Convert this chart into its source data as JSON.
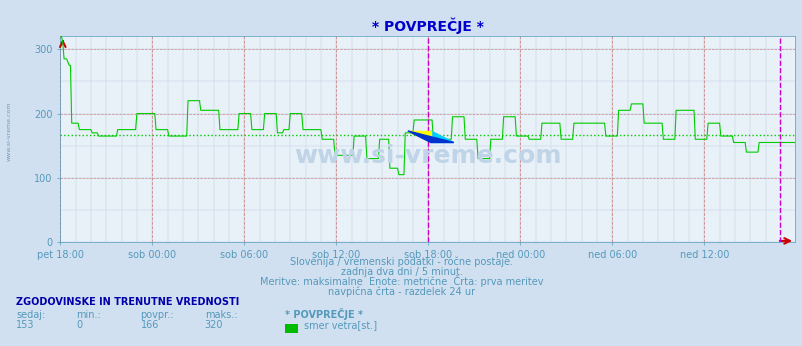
{
  "title": "* POVPREČJE *",
  "bg_color": "#d0e0f0",
  "plot_bg_color": "#e8f0f8",
  "line_color": "#00cc00",
  "avg_line_color": "#00cc00",
  "avg_value": 166,
  "ymin": 0,
  "ymax": 320,
  "xlabel_color": "#5599bb",
  "grid_color_major": "#cc8888",
  "grid_color_minor": "#bbccdd",
  "title_color": "#0000cc",
  "text_color": "#5599bb",
  "xtick_labels": [
    "pet 18:00",
    "sob 00:00",
    "sob 06:00",
    "sob 12:00",
    "sob 18:00",
    "ned 00:00",
    "ned 06:00",
    "ned 12:00"
  ],
  "xtick_positions": [
    0,
    72,
    144,
    216,
    288,
    360,
    432,
    504
  ],
  "subtitle_lines": [
    "Slovenija / vremenski podatki - ročne postaje.",
    "zadnja dva dni / 5 minut.",
    "Meritve: maksimalne  Enote: metrične  Črta: prva meritev",
    "navpična črta - razdelek 24 ur"
  ],
  "stats_header": "ZGODOVINSKE IN TRENUTNE VREDNOSTI",
  "stats_labels": [
    "sedaj:",
    "min.:",
    "povpr.:",
    "maks.:"
  ],
  "stats_values": [
    "153",
    "0",
    "166",
    "320"
  ],
  "series_label": "* POVPREČJE *",
  "legend_label": "smer vetra[st.]",
  "legend_color": "#00bb00",
  "watermark": "www.si-vreme.com",
  "watermark_color": "#c0d4e8",
  "arrow_color": "#cc0000",
  "magenta_line_color": "#cc00cc",
  "n_points": 576,
  "wind_data": [
    320,
    320,
    310,
    285,
    285,
    285,
    280,
    275,
    275,
    185,
    185,
    185,
    185,
    185,
    185,
    175,
    175,
    175,
    175,
    175,
    175,
    175,
    175,
    175,
    175,
    170,
    170,
    170,
    170,
    170,
    165,
    165,
    165,
    165,
    165,
    165,
    165,
    165,
    165,
    165,
    165,
    165,
    165,
    165,
    165,
    175,
    175,
    175,
    175,
    175,
    175,
    175,
    175,
    175,
    175,
    175,
    175,
    175,
    175,
    175,
    200,
    200,
    200,
    200,
    200,
    200,
    200,
    200,
    200,
    200,
    200,
    200,
    200,
    200,
    200,
    175,
    175,
    175,
    175,
    175,
    175,
    175,
    175,
    175,
    175,
    165,
    165,
    165,
    165,
    165,
    165,
    165,
    165,
    165,
    165,
    165,
    165,
    165,
    165,
    165,
    220,
    220,
    220,
    220,
    220,
    220,
    220,
    220,
    220,
    220,
    205,
    205,
    205,
    205,
    205,
    205,
    205,
    205,
    205,
    205,
    205,
    205,
    205,
    205,
    205,
    175,
    175,
    175,
    175,
    175,
    175,
    175,
    175,
    175,
    175,
    175,
    175,
    175,
    175,
    175,
    200,
    200,
    200,
    200,
    200,
    200,
    200,
    200,
    200,
    200,
    175,
    175,
    175,
    175,
    175,
    175,
    175,
    175,
    175,
    175,
    200,
    200,
    200,
    200,
    200,
    200,
    200,
    200,
    200,
    200,
    170,
    170,
    170,
    170,
    170,
    175,
    175,
    175,
    175,
    175,
    200,
    200,
    200,
    200,
    200,
    200,
    200,
    200,
    200,
    200,
    175,
    175,
    175,
    175,
    175,
    175,
    175,
    175,
    175,
    175,
    175,
    175,
    175,
    175,
    175,
    160,
    160,
    160,
    160,
    160,
    160,
    160,
    160,
    160,
    160,
    135,
    135,
    135,
    135,
    135,
    135,
    135,
    135,
    135,
    135,
    135,
    135,
    135,
    135,
    135,
    165,
    165,
    165,
    165,
    165,
    165,
    165,
    165,
    165,
    165,
    130,
    130,
    130,
    130,
    130,
    130,
    130,
    130,
    130,
    130,
    160,
    160,
    160,
    160,
    160,
    160,
    160,
    160,
    115,
    115,
    115,
    115,
    115,
    115,
    115,
    105,
    105,
    105,
    105,
    105,
    170,
    170,
    170,
    170,
    170,
    170,
    170,
    190,
    190,
    190,
    190,
    190,
    190,
    190,
    190,
    190,
    190,
    190,
    190,
    190,
    190,
    190,
    160,
    160,
    160,
    160,
    160,
    160,
    160,
    160,
    160,
    160,
    160,
    160,
    160,
    160,
    160,
    195,
    195,
    195,
    195,
    195,
    195,
    195,
    195,
    195,
    195,
    160,
    160,
    160,
    160,
    160,
    160,
    160,
    160,
    160,
    160,
    130,
    130,
    130,
    130,
    130,
    130,
    130,
    130,
    130,
    130,
    160,
    160,
    160,
    160,
    160,
    160,
    160,
    160,
    160,
    160,
    195,
    195,
    195,
    195,
    195,
    195,
    195,
    195,
    195,
    195,
    165,
    165,
    165,
    165,
    165,
    165,
    165,
    165,
    165,
    165,
    160,
    160,
    160,
    160,
    160,
    160,
    160,
    160,
    160,
    160,
    185,
    185,
    185,
    185,
    185,
    185,
    185,
    185,
    185,
    185,
    185,
    185,
    185,
    185,
    185,
    160,
    160,
    160,
    160,
    160,
    160,
    160,
    160,
    160,
    160,
    185,
    185,
    185,
    185,
    185,
    185,
    185,
    185,
    185,
    185,
    185,
    185,
    185,
    185,
    185,
    185,
    185,
    185,
    185,
    185,
    185,
    185,
    185,
    185,
    185,
    165,
    165,
    165,
    165,
    165,
    165,
    165,
    165,
    165,
    165,
    205,
    205,
    205,
    205,
    205,
    205,
    205,
    205,
    205,
    205,
    215,
    215,
    215,
    215,
    215,
    215,
    215,
    215,
    215,
    215,
    185,
    185,
    185,
    185,
    185,
    185,
    185,
    185,
    185,
    185,
    185,
    185,
    185,
    185,
    185,
    160,
    160,
    160,
    160,
    160,
    160,
    160,
    160,
    160,
    160,
    205,
    205,
    205,
    205,
    205,
    205,
    205,
    205,
    205,
    205,
    205,
    205,
    205,
    205,
    205,
    160,
    160,
    160,
    160,
    160,
    160,
    160,
    160,
    160,
    160,
    185,
    185,
    185,
    185,
    185,
    185,
    185,
    185,
    185,
    185,
    165,
    165,
    165,
    165,
    165,
    165,
    165,
    165,
    165,
    165,
    155,
    155,
    155,
    155,
    155,
    155,
    155,
    155,
    155,
    155,
    140,
    140,
    140,
    140,
    140,
    140,
    140,
    140,
    140,
    140,
    155,
    155,
    155,
    155,
    155,
    155,
    155,
    155,
    155,
    155,
    155
  ]
}
